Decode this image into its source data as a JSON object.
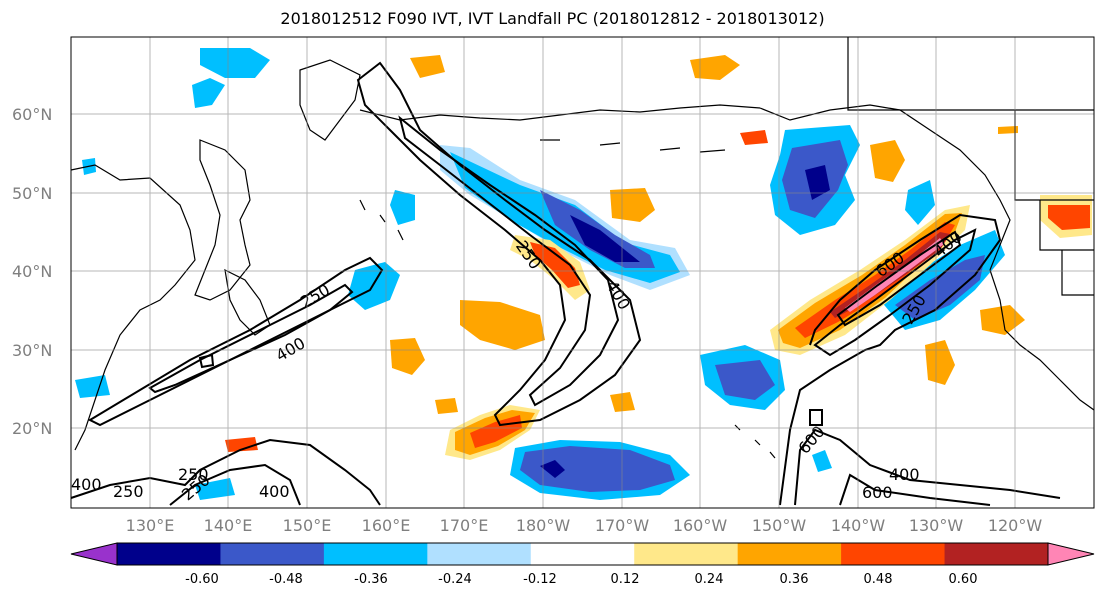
{
  "title": "2018012512 F090 IVT, IVT Landfall PC (2018012812 - 2018013012)",
  "lat_labels": [
    "60°N",
    "50°N",
    "40°N",
    "30°N",
    "20°N"
  ],
  "lon_labels": [
    "130°E",
    "140°E",
    "150°E",
    "160°E",
    "170°E",
    "180°W",
    "170°W",
    "160°W",
    "150°W",
    "140°W",
    "130°W",
    "120°W"
  ],
  "contour_labels": [
    "250",
    "400",
    "250",
    "400",
    "250",
    "400",
    "250",
    "400",
    "600",
    "400",
    "250",
    "600",
    "400",
    "600",
    "250"
  ],
  "colorbar": {
    "ticks": [
      "-0.60",
      "-0.48",
      "-0.36",
      "-0.24",
      "-0.12",
      "0.12",
      "0.24",
      "0.36",
      "0.48",
      "0.60"
    ],
    "colors": [
      "#9932cc",
      "#00008b",
      "#3b58c9",
      "#00bfff",
      "#b0e0ff",
      "#ffffff",
      "#ffe88a",
      "#ffa500",
      "#ff4500",
      "#b22222",
      "#ff85b5"
    ]
  },
  "colors": {
    "neg_strong": "#00008b",
    "neg_mid": "#3b58c9",
    "neg_light": "#00bfff",
    "neg_pale": "#b0e0ff",
    "pos_pale": "#ffe88a",
    "pos_light": "#ffa500",
    "pos_mid": "#ff4500",
    "pos_strong": "#b22222",
    "pos_max": "#ff85b5"
  }
}
